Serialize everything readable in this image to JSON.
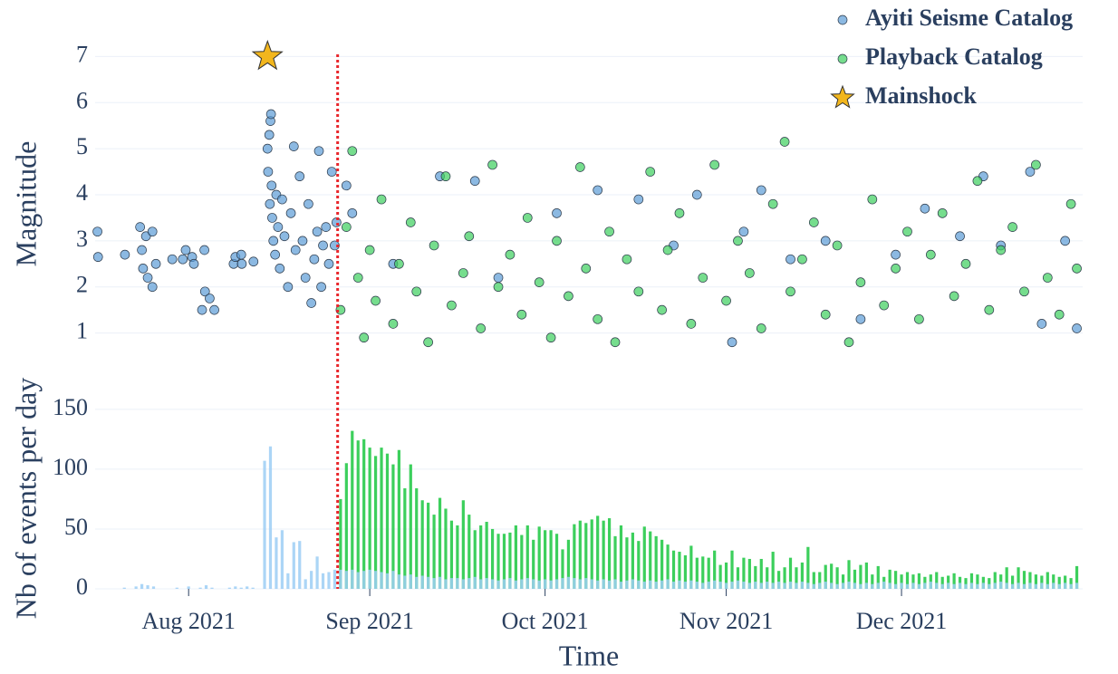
{
  "chart_data": [
    {
      "type": "scatter",
      "ylabel": "Magnitude",
      "xlim": [
        197,
        366
      ],
      "ylim": [
        0.5,
        7.5
      ],
      "yticks": [
        1,
        2,
        3,
        4,
        5,
        6,
        7
      ],
      "grid": true,
      "legend": "top-right",
      "vline_x": 238.5,
      "vline_color": "#e8262b",
      "series": [
        {
          "name": "Ayiti Seisme Catalog",
          "color": "#5b9bd5",
          "x": [
            197.4,
            197.5,
            202.1,
            204.7,
            205,
            205.7,
            206.8,
            205.2,
            206,
            206.8,
            207.4,
            210.2,
            212.5,
            212,
            213.6,
            213.9,
            215.7,
            215.3,
            215.8,
            216.6,
            217.4,
            220.7,
            221,
            222,
            222.1,
            224.1,
            226.5,
            226.6,
            226.8,
            227,
            227.1,
            227.2,
            226.9,
            227.3,
            227.5,
            227.8,
            228,
            228.3,
            228.6,
            229,
            229.4,
            230,
            230.5,
            231,
            231.3,
            232,
            232.5,
            233,
            233.5,
            234,
            234.5,
            235,
            235.3,
            235.7,
            236,
            236.5,
            237,
            237.5,
            238,
            238.3,
            240,
            241,
            248,
            256,
            262,
            266,
            276,
            283,
            290,
            296,
            300,
            306,
            308,
            311,
            316,
            322,
            328,
            334,
            339,
            345,
            349,
            352,
            357,
            359,
            363,
            365
          ],
          "values": [
            3.2,
            2.65,
            2.7,
            3.3,
            2.8,
            3.1,
            3.2,
            2.4,
            2.2,
            2.0,
            2.5,
            2.6,
            2.8,
            2.6,
            2.65,
            2.5,
            2.8,
            1.5,
            1.9,
            1.75,
            1.5,
            2.5,
            2.65,
            2.7,
            2.5,
            2.55,
            5.0,
            4.5,
            5.3,
            5.6,
            5.75,
            4.2,
            3.8,
            3.5,
            3.0,
            2.7,
            4.0,
            3.3,
            2.4,
            3.9,
            3.1,
            2.0,
            3.6,
            5.05,
            2.8,
            4.4,
            3.0,
            2.2,
            3.8,
            1.65,
            2.6,
            3.2,
            4.95,
            2.0,
            2.9,
            3.3,
            2.5,
            4.5,
            2.9,
            3.4,
            4.2,
            3.6,
            2.5,
            4.4,
            4.3,
            2.2,
            3.6,
            4.1,
            3.9,
            2.9,
            4.0,
            0.8,
            3.2,
            4.1,
            2.6,
            3.0,
            1.3,
            2.7,
            3.7,
            3.1,
            4.4,
            2.9,
            4.5,
            1.2,
            3.0,
            1.1
          ]
        },
        {
          "name": "Playback Catalog",
          "color": "#3ccf5c",
          "x": [
            239,
            240,
            241,
            242,
            243,
            244,
            245,
            246,
            248,
            249,
            251,
            252,
            254,
            255,
            257,
            258,
            260,
            261,
            263,
            265,
            266,
            268,
            270,
            271,
            273,
            275,
            276,
            278,
            280,
            281,
            283,
            285,
            286,
            288,
            290,
            292,
            294,
            295,
            297,
            299,
            301,
            303,
            305,
            307,
            309,
            311,
            313,
            315,
            316,
            318,
            320,
            322,
            324,
            326,
            328,
            330,
            332,
            334,
            336,
            338,
            340,
            342,
            344,
            346,
            348,
            350,
            352,
            354,
            356,
            358,
            360,
            362,
            364,
            365
          ],
          "values": [
            1.5,
            3.3,
            4.95,
            2.2,
            0.9,
            2.8,
            1.7,
            3.9,
            1.2,
            2.5,
            3.4,
            1.9,
            0.8,
            2.9,
            4.4,
            1.6,
            2.3,
            3.1,
            1.1,
            4.65,
            2.0,
            2.7,
            1.4,
            3.5,
            2.1,
            0.9,
            3.0,
            1.8,
            4.6,
            2.4,
            1.3,
            3.2,
            0.8,
            2.6,
            1.9,
            4.5,
            1.5,
            2.8,
            3.6,
            1.2,
            2.2,
            4.65,
            1.7,
            3.0,
            2.3,
            1.1,
            3.8,
            5.15,
            1.9,
            2.6,
            3.4,
            1.4,
            2.9,
            0.8,
            2.1,
            3.9,
            1.6,
            2.4,
            3.2,
            1.3,
            2.7,
            3.6,
            1.8,
            2.5,
            4.3,
            1.5,
            2.8,
            3.3,
            1.9,
            4.65,
            2.2,
            1.4,
            3.8,
            2.4
          ]
        }
      ],
      "mainshock": {
        "name": "Mainshock",
        "x": 226.5,
        "value": 7,
        "color": "#f2b61d"
      }
    },
    {
      "type": "bar",
      "xlabel": "Time",
      "ylabel": "Nb of events per day",
      "xlim": [
        197,
        366
      ],
      "ylim": [
        0,
        165
      ],
      "yticks": [
        0,
        50,
        100,
        150
      ],
      "grid": true,
      "xticks": [
        {
          "value": 213,
          "label": "Aug 2021"
        },
        {
          "value": 244,
          "label": "Sep 2021"
        },
        {
          "value": 274,
          "label": "Oct 2021"
        },
        {
          "value": 305,
          "label": "Nov 2021"
        },
        {
          "value": 335,
          "label": "Dec 2021"
        }
      ],
      "x": [
        197,
        198,
        199,
        200,
        201,
        202,
        203,
        204,
        205,
        206,
        207,
        208,
        209,
        210,
        211,
        212,
        213,
        214,
        215,
        216,
        217,
        218,
        219,
        220,
        221,
        222,
        223,
        224,
        225,
        226,
        227,
        228,
        229,
        230,
        231,
        232,
        233,
        234,
        235,
        236,
        237,
        238,
        239,
        240,
        241,
        242,
        243,
        244,
        245,
        246,
        247,
        248,
        249,
        250,
        251,
        252,
        253,
        254,
        255,
        256,
        257,
        258,
        259,
        260,
        261,
        262,
        263,
        264,
        265,
        266,
        267,
        268,
        269,
        270,
        271,
        272,
        273,
        274,
        275,
        276,
        277,
        278,
        279,
        280,
        281,
        282,
        283,
        284,
        285,
        286,
        287,
        288,
        289,
        290,
        291,
        292,
        293,
        294,
        295,
        296,
        297,
        298,
        299,
        300,
        301,
        302,
        303,
        304,
        305,
        306,
        307,
        308,
        309,
        310,
        311,
        312,
        313,
        314,
        315,
        316,
        317,
        318,
        319,
        320,
        321,
        322,
        323,
        324,
        325,
        326,
        327,
        328,
        329,
        330,
        331,
        332,
        333,
        334,
        335,
        336,
        337,
        338,
        339,
        340,
        341,
        342,
        343,
        344,
        345,
        346,
        347,
        348,
        349,
        350,
        351,
        352,
        353,
        354,
        355,
        356,
        357,
        358,
        359,
        360,
        361,
        362,
        363,
        364,
        365
      ],
      "series": [
        {
          "color": "#3ccf5c",
          "values": [
            null,
            null,
            null,
            null,
            null,
            null,
            null,
            null,
            null,
            null,
            null,
            null,
            null,
            null,
            null,
            null,
            null,
            null,
            null,
            null,
            null,
            null,
            null,
            null,
            null,
            null,
            null,
            null,
            null,
            null,
            null,
            null,
            null,
            null,
            null,
            null,
            null,
            null,
            null,
            null,
            null,
            null,
            75,
            105,
            132,
            124,
            125,
            118,
            111,
            118,
            113,
            104,
            116,
            84,
            104,
            84,
            74,
            72,
            62,
            76,
            67,
            57,
            53,
            74,
            62,
            49,
            53,
            56,
            50,
            46,
            46,
            47,
            53,
            45,
            53,
            41,
            52,
            49,
            49,
            46,
            33,
            41,
            54,
            57,
            55,
            58,
            61,
            57,
            59,
            44,
            53,
            43,
            47,
            40,
            52,
            48,
            44,
            41,
            37,
            32,
            31,
            28,
            36,
            26,
            27,
            26,
            32,
            20,
            22,
            32,
            18,
            26,
            25,
            19,
            25,
            18,
            31,
            15,
            18,
            26,
            18,
            22,
            35,
            14,
            14,
            20,
            21,
            18,
            12,
            24,
            16,
            20,
            22,
            12,
            19,
            10,
            16,
            15,
            12,
            14,
            12,
            13,
            10,
            12,
            14,
            10,
            11,
            13,
            10,
            9,
            13,
            12,
            10,
            9,
            14,
            12,
            18,
            11,
            18,
            15,
            14,
            12,
            11,
            14,
            12,
            10,
            11,
            9,
            19
          ]
        },
        {
          "color": "#9ccef5",
          "values": [
            0,
            0,
            0,
            0,
            0,
            1,
            0,
            2,
            4,
            3,
            2,
            0,
            0,
            0,
            1,
            0,
            2,
            0,
            1,
            3,
            1,
            0,
            0,
            1,
            2,
            1,
            2,
            1,
            0,
            107,
            119,
            43,
            49,
            13,
            39,
            40,
            8,
            15,
            27,
            13,
            14,
            16,
            16,
            15,
            16,
            14,
            15,
            16,
            15,
            14,
            13,
            15,
            12,
            11,
            12,
            10,
            11,
            10,
            9,
            10,
            8,
            9,
            9,
            8,
            9,
            10,
            8,
            9,
            8,
            7,
            8,
            9,
            7,
            8,
            9,
            8,
            7,
            8,
            7,
            8,
            9,
            10,
            9,
            8,
            9,
            8,
            7,
            8,
            7,
            8,
            6,
            7,
            8,
            7,
            6,
            7,
            6,
            7,
            8,
            6,
            7,
            6,
            7,
            6,
            5,
            6,
            7,
            6,
            5,
            6,
            7,
            6,
            5,
            6,
            5,
            6,
            5,
            6,
            5,
            6,
            5,
            6,
            5,
            4,
            5,
            6,
            5,
            4,
            5,
            6,
            5,
            4,
            5,
            4,
            5,
            6,
            5,
            4,
            5,
            4,
            5,
            4,
            5,
            6,
            5,
            4,
            5,
            4,
            5,
            4,
            5,
            4,
            5,
            4,
            5,
            6,
            5,
            4,
            5,
            4,
            5,
            4,
            5,
            4,
            5,
            4,
            5,
            4,
            5
          ]
        }
      ]
    }
  ]
}
